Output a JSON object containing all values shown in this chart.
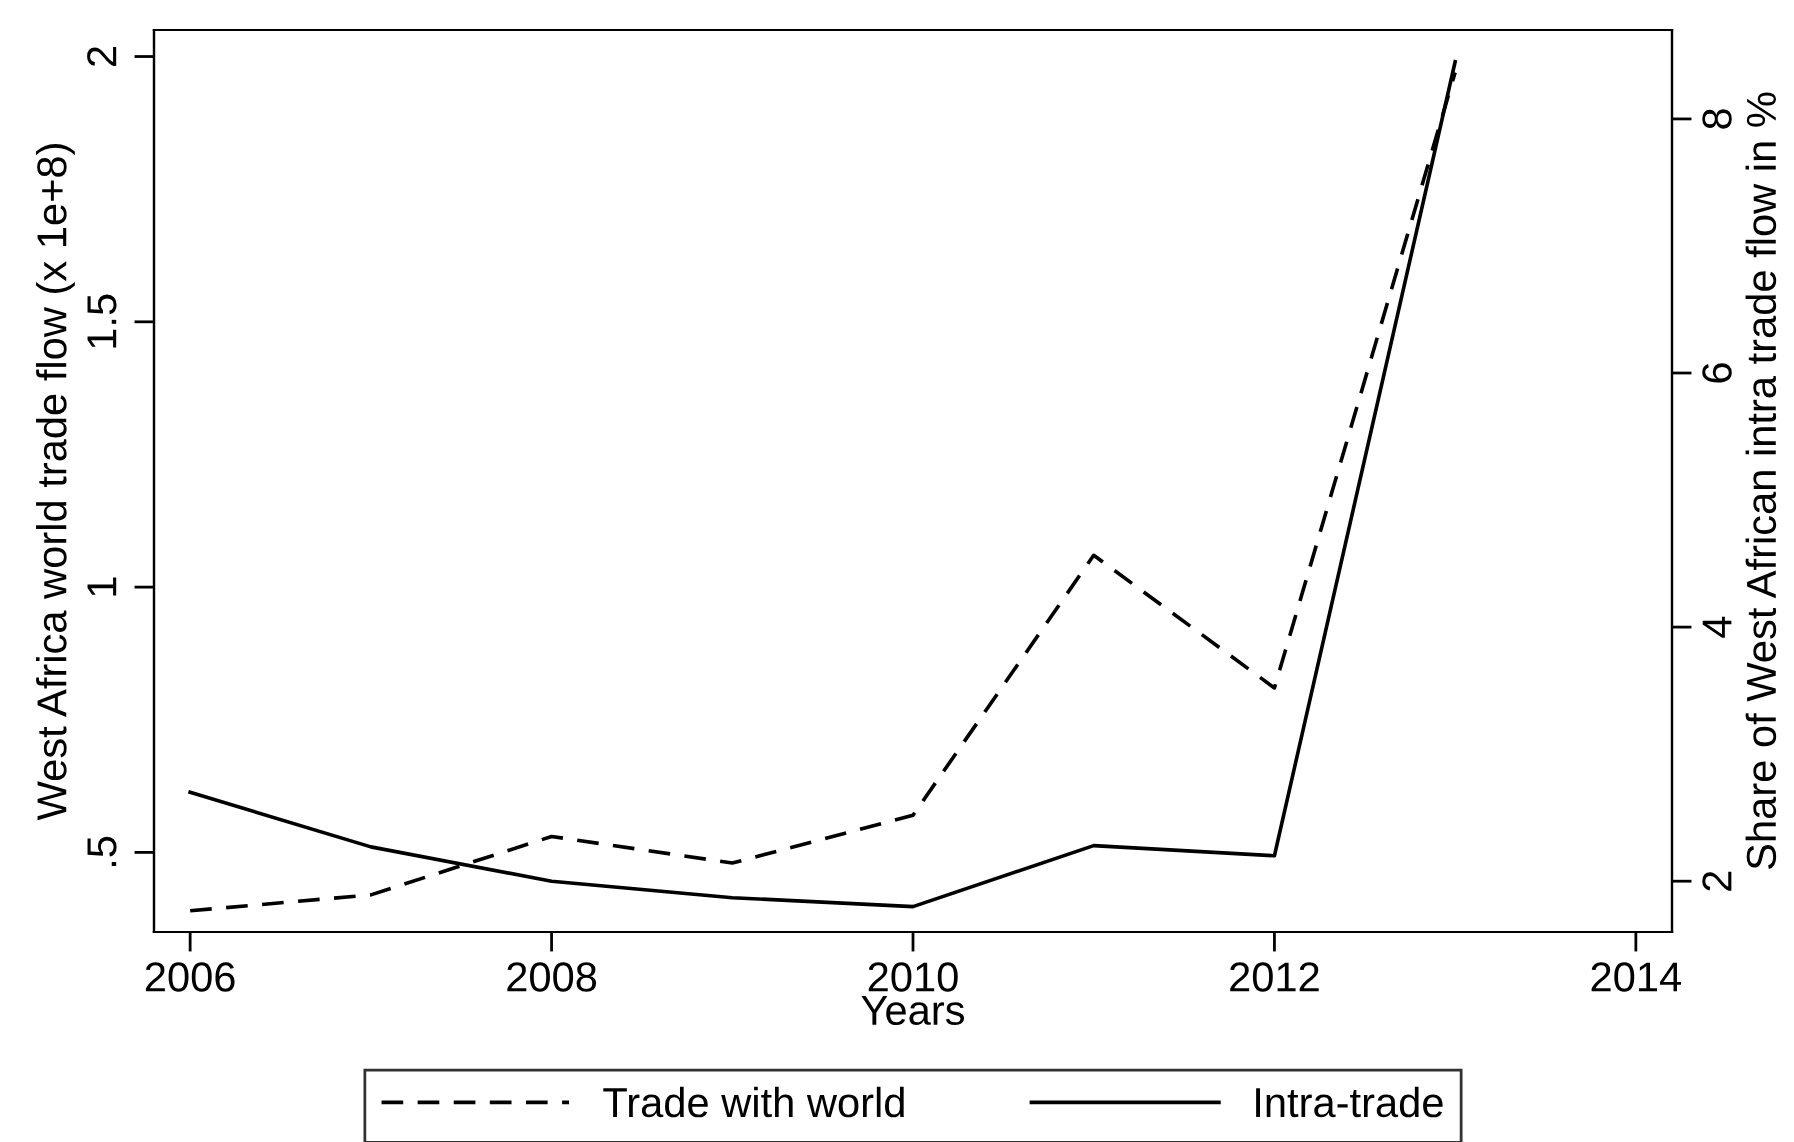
{
  "chart_data": {
    "type": "line",
    "xlabel": "Years",
    "ylabel": "West Africa world trade flow (x 1e+8)",
    "y2label": "Share of West African intra trade flow in %",
    "x": [
      2006,
      2007,
      2008,
      2009,
      2010,
      2011,
      2012,
      2013
    ],
    "series": [
      {
        "name": "Trade with world",
        "color": "#000000",
        "line_style": "dashed",
        "values": [
          0.39,
          0.42,
          0.53,
          0.48,
          0.57,
          1.06,
          0.81,
          1.97
        ]
      },
      {
        "name": "Intra-trade",
        "color": "#000000",
        "line_style": "solid",
        "axis": "y2",
        "values": [
          2.7,
          2.27,
          2.0,
          1.87,
          1.8,
          2.28,
          2.2,
          8.45
        ]
      }
    ],
    "xlim": [
      2005.8,
      2014.2
    ],
    "xticks": [
      2006,
      2008,
      2010,
      2012,
      2014
    ],
    "ylim": [
      0.35,
      2.05
    ],
    "yticks": [
      {
        "value": 0.5,
        "label": ".5"
      },
      1,
      1.5,
      2
    ],
    "y2lim": [
      1.6,
      8.7
    ],
    "y2ticks": [
      2,
      4,
      6,
      8
    ],
    "grid": false,
    "legend": "bottom",
    "marker": "none"
  }
}
